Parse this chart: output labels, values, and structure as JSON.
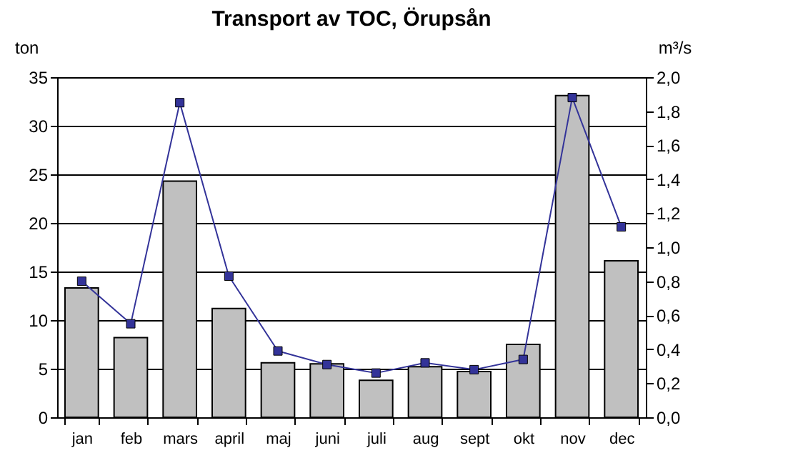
{
  "chart_data": {
    "type": "bar",
    "title": "Transport av TOC, Örupsån",
    "ylabel": "ton",
    "y2label": "m³/s",
    "categories": [
      "jan",
      "feb",
      "mars",
      "april",
      "maj",
      "juni",
      "juli",
      "aug",
      "sept",
      "okt",
      "nov",
      "dec"
    ],
    "series": [
      {
        "color": "#c0c0c0",
        "values": [
          13.3,
          8.2,
          24.3,
          11.2,
          5.6,
          5.5,
          3.8,
          5.2,
          4.7,
          7.5,
          33.1,
          16.1
        ]
      },
      {
        "type": "line",
        "axis": "y2",
        "color": "#333399",
        "marker": "square",
        "line_style": "solid",
        "values": [
          0.8,
          0.55,
          1.85,
          0.83,
          0.39,
          0.31,
          0.26,
          0.32,
          0.28,
          0.34,
          1.88,
          1.12
        ]
      }
    ],
    "ylim": [
      0,
      35
    ],
    "yticks": [
      0,
      5,
      10,
      15,
      20,
      25,
      30,
      35
    ],
    "y2lim": [
      0,
      2
    ],
    "y2ticks": [
      {
        "value": 0,
        "label": "0,0"
      },
      {
        "value": 0.2,
        "label": "0,2"
      },
      {
        "value": 0.4,
        "label": "0,4"
      },
      {
        "value": 0.6,
        "label": "0,6"
      },
      {
        "value": 0.8,
        "label": "0,8"
      },
      {
        "value": 1,
        "label": "1,0"
      },
      {
        "value": 1.2,
        "label": "1,2"
      },
      {
        "value": 1.4,
        "label": "1,4"
      },
      {
        "value": 1.6,
        "label": "1,6"
      },
      {
        "value": 1.8,
        "label": "1,8"
      },
      {
        "value": 2,
        "label": "2,0"
      }
    ],
    "grid": "y"
  }
}
